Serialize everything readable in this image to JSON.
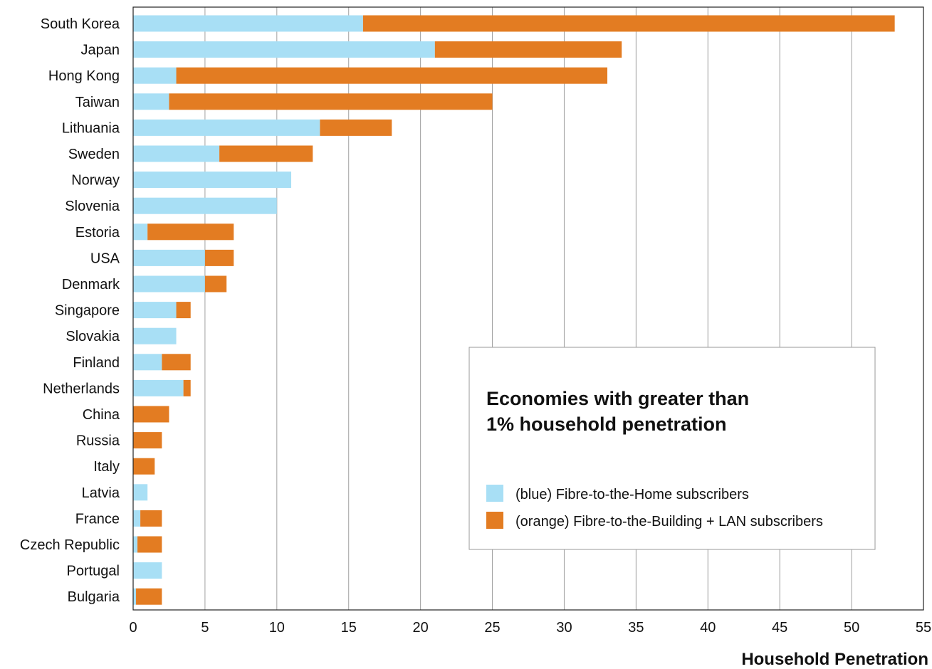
{
  "chart_data": {
    "type": "bar",
    "orientation": "horizontal",
    "stacked": true,
    "categories": [
      "South Korea",
      "Japan",
      "Hong Kong",
      "Taiwan",
      "Lithuania",
      "Sweden",
      "Norway",
      "Slovenia",
      "Estoria",
      "USA",
      "Denmark",
      "Singapore",
      "Slovakia",
      "Finland",
      "Netherlands",
      "China",
      "Russia",
      "Italy",
      "Latvia",
      "France",
      "Czech Republic",
      "Portugal",
      "Bulgaria"
    ],
    "series": [
      {
        "name": "(blue) Fibre-to-the-Home subscribers",
        "color": "#a8dff5",
        "values": [
          16,
          21,
          3,
          2.5,
          13,
          6,
          11,
          10,
          1,
          5,
          5,
          3,
          3,
          2,
          3.5,
          0,
          0,
          0,
          1,
          0.5,
          0.3,
          2,
          0.2
        ]
      },
      {
        "name": "(orange) Fibre-to-the-Building + LAN subscribers",
        "color": "#e37c22",
        "values": [
          37,
          13,
          30,
          22.5,
          5,
          6.5,
          0,
          0,
          6,
          2,
          1.5,
          1,
          0,
          2,
          0.5,
          2.5,
          2,
          1.5,
          0,
          1.5,
          1.7,
          0,
          1.8
        ]
      }
    ],
    "xlabel": "Household Penetration",
    "ylabel": "",
    "xlim": [
      0,
      55
    ],
    "xticks": [
      "0",
      "5",
      "10",
      "15",
      "20",
      "25",
      "30",
      "35",
      "40",
      "45",
      "50",
      "55"
    ],
    "grid": "vertical",
    "legend": {
      "title_lines": [
        "Economies with greater than",
        "1% household penetration"
      ],
      "position": "bottom-right"
    }
  }
}
